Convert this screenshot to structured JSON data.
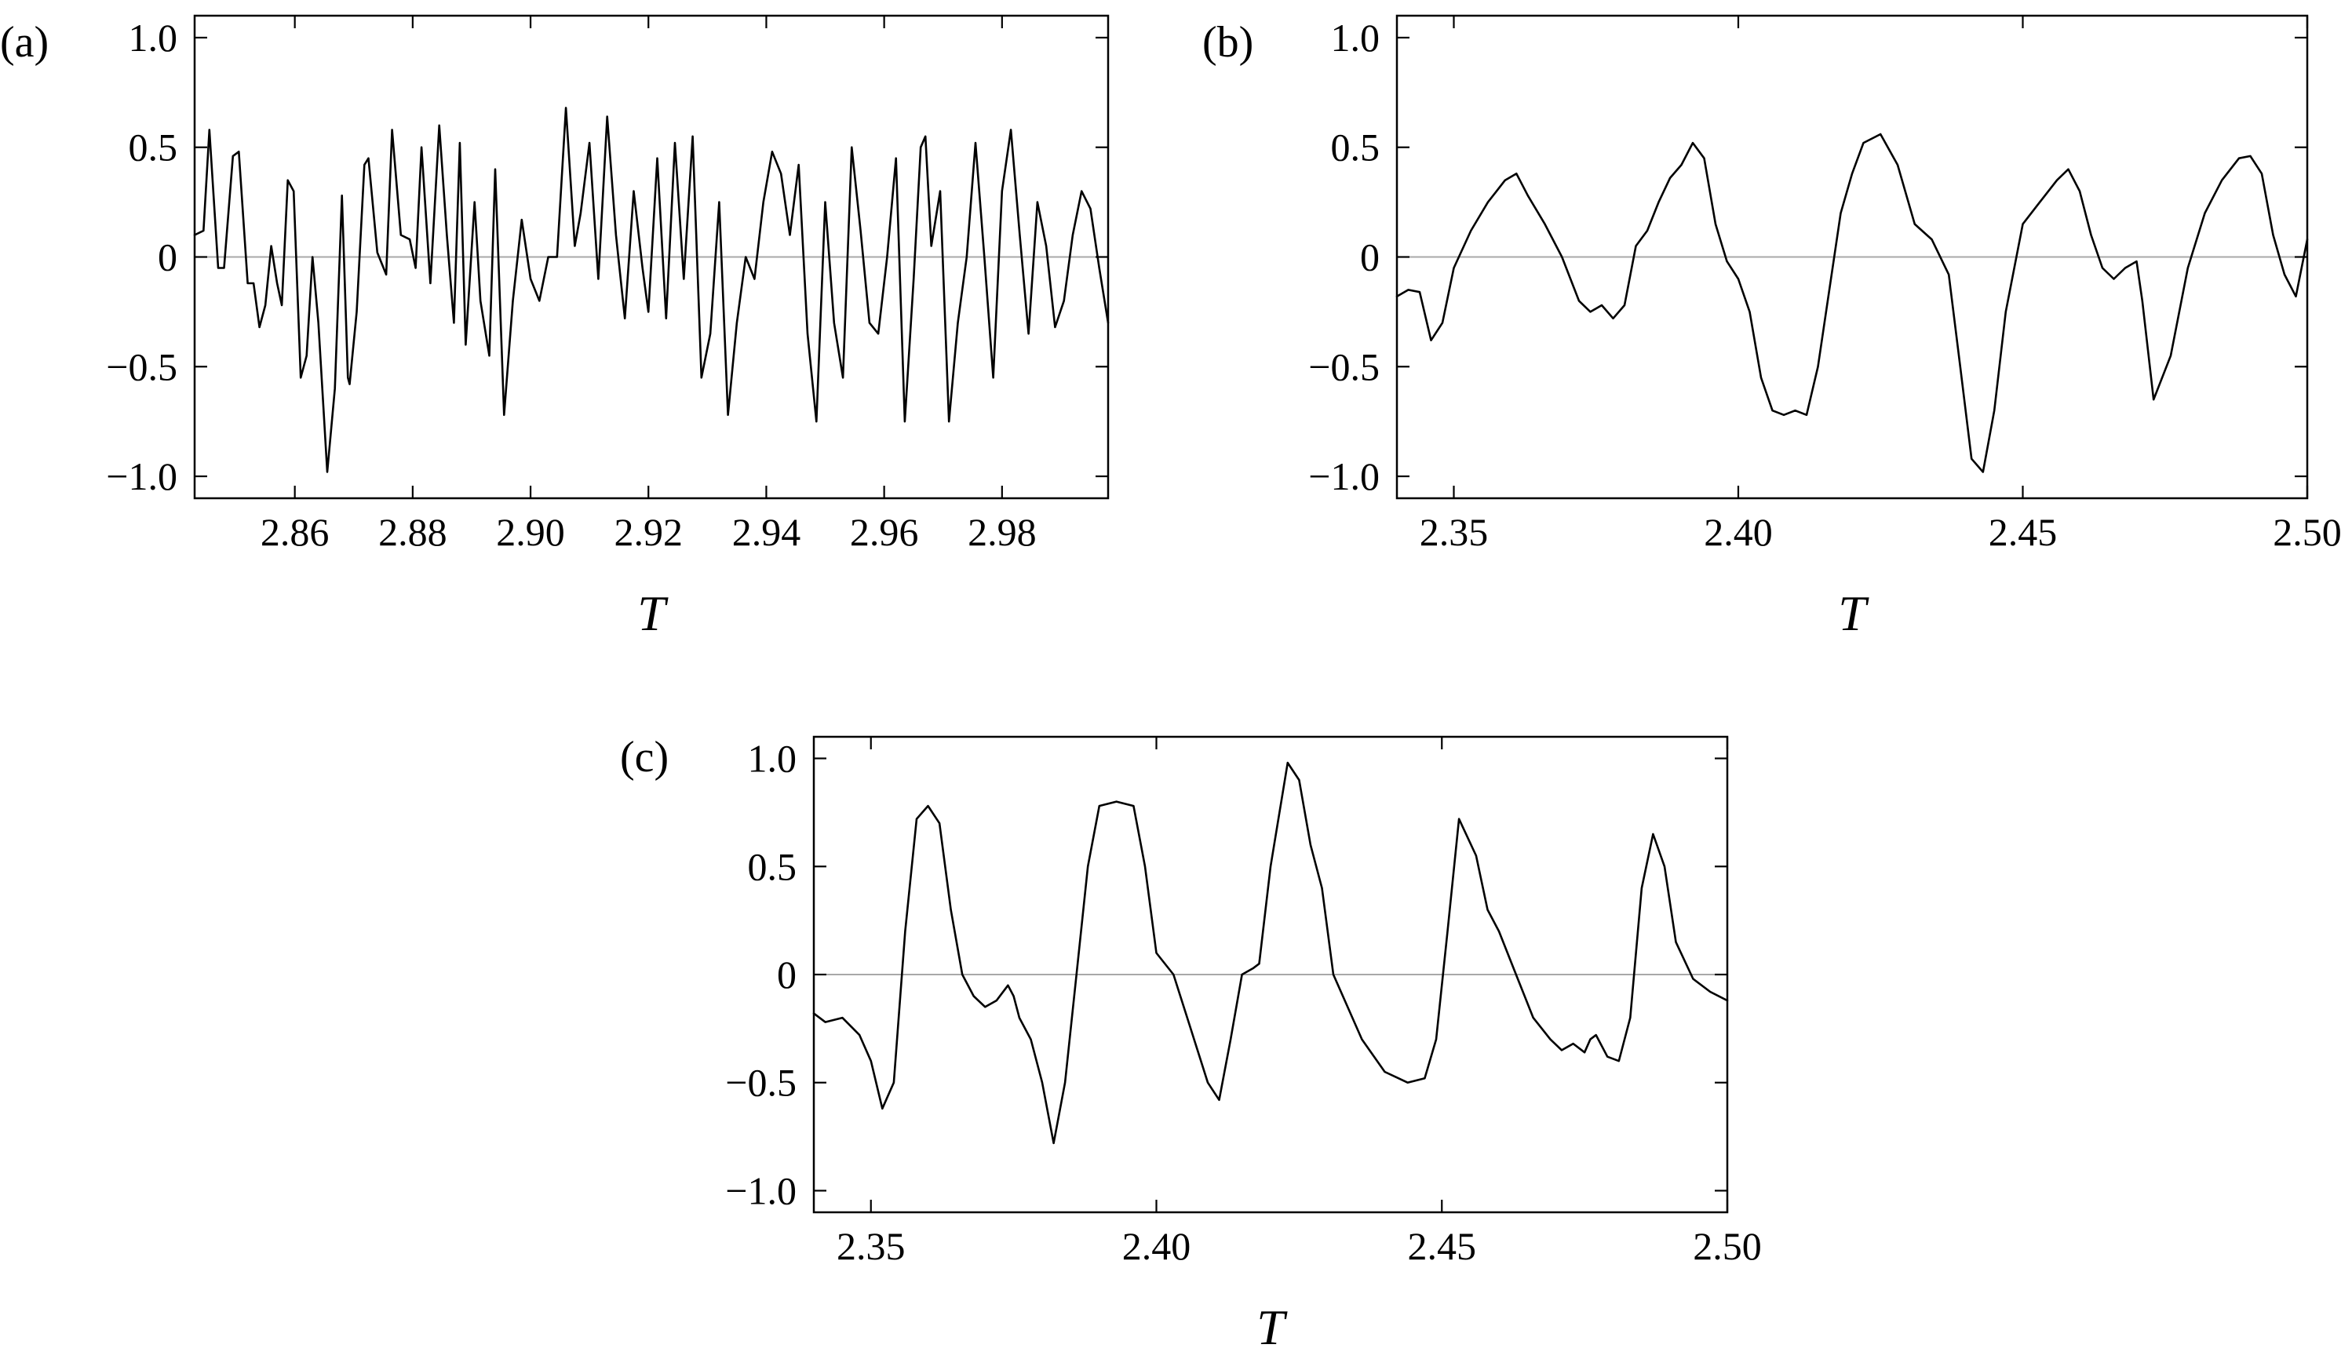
{
  "chart_data": [
    {
      "type": "line",
      "panel_label": "(a)",
      "xlabel": "T",
      "ylabel": "",
      "xlim": [
        2.843,
        2.998
      ],
      "ylim": [
        -1.1,
        1.1
      ],
      "x_ticks": [
        "2.86",
        "2.88",
        "2.90",
        "2.92",
        "2.94",
        "2.96",
        "2.98"
      ],
      "y_ticks": [
        "1.0",
        "0.5",
        "0",
        "−0.5",
        "−1.0"
      ],
      "zero_line": true,
      "series": [
        {
          "x": [
            2.843,
            2.8445,
            2.8455,
            2.847,
            2.848,
            2.8495,
            2.8505,
            2.852,
            2.853,
            2.854,
            2.855,
            2.856,
            2.857,
            2.8578,
            2.8588,
            2.8598,
            2.861,
            2.862,
            2.863,
            2.864,
            2.8655,
            2.8668,
            2.868,
            2.869,
            2.8693,
            2.8705,
            2.8718,
            2.8725,
            2.874,
            2.8755,
            2.8765,
            2.878,
            2.8795,
            2.8805,
            2.8815,
            2.883,
            2.8845,
            2.8858,
            2.887,
            2.888,
            2.889,
            2.8905,
            2.8915,
            2.893,
            2.894,
            2.8955,
            2.897,
            2.8985,
            2.9,
            2.9015,
            2.903,
            2.9045,
            2.906,
            2.9075,
            2.9085,
            2.91,
            2.9115,
            2.913,
            2.9145,
            2.916,
            2.9175,
            2.919,
            2.92,
            2.9215,
            2.923,
            2.9245,
            2.926,
            2.9275,
            2.929,
            2.9305,
            2.932,
            2.9335,
            2.935,
            2.9365,
            2.938,
            2.9395,
            2.941,
            2.9425,
            2.944,
            2.9455,
            2.947,
            2.9485,
            2.95,
            2.9515,
            2.953,
            2.9545,
            2.956,
            2.9575,
            2.959,
            2.9605,
            2.962,
            2.9635,
            2.965,
            2.9662,
            2.967,
            2.968,
            2.9695,
            2.971,
            2.9725,
            2.974,
            2.9755,
            2.977,
            2.9785,
            2.98,
            2.9815,
            2.983,
            2.9845,
            2.986,
            2.9875,
            2.989,
            2.9905,
            2.992,
            2.9935,
            2.995,
            2.9965,
            2.998
          ],
          "y": [
            0.1,
            0.12,
            0.58,
            -0.05,
            -0.05,
            0.46,
            0.48,
            -0.12,
            -0.12,
            -0.32,
            -0.22,
            0.05,
            -0.12,
            -0.22,
            0.35,
            0.3,
            -0.55,
            -0.45,
            0.0,
            -0.3,
            -0.98,
            -0.6,
            0.28,
            -0.55,
            -0.58,
            -0.25,
            0.42,
            0.45,
            0.02,
            -0.08,
            0.58,
            0.1,
            0.08,
            -0.05,
            0.5,
            -0.12,
            0.6,
            0.1,
            -0.3,
            0.52,
            -0.4,
            0.25,
            -0.2,
            -0.45,
            0.4,
            -0.72,
            -0.2,
            0.17,
            -0.1,
            -0.2,
            0.0,
            0.0,
            0.68,
            0.05,
            0.2,
            0.52,
            -0.1,
            0.64,
            0.1,
            -0.28,
            0.3,
            -0.05,
            -0.25,
            0.45,
            -0.28,
            0.52,
            -0.1,
            0.55,
            -0.55,
            -0.35,
            0.25,
            -0.72,
            -0.3,
            0.0,
            -0.1,
            0.25,
            0.48,
            0.38,
            0.1,
            0.42,
            -0.35,
            -0.75,
            0.25,
            -0.3,
            -0.55,
            0.5,
            0.12,
            -0.3,
            -0.35,
            0.0,
            0.45,
            -0.75,
            -0.1,
            0.5,
            0.55,
            0.05,
            0.3,
            -0.75,
            -0.3,
            0.0,
            0.52,
            0.0,
            -0.55,
            0.3,
            0.58,
            0.1,
            -0.35,
            0.25,
            0.05,
            -0.32,
            -0.2,
            0.1,
            0.3,
            0.22,
            -0.05,
            -0.3
          ]
        }
      ]
    },
    {
      "type": "line",
      "panel_label": "(b)",
      "xlabel": "T",
      "ylabel": "",
      "xlim": [
        2.34,
        2.5
      ],
      "ylim": [
        -1.1,
        1.1
      ],
      "x_ticks": [
        "2.35",
        "2.40",
        "2.45",
        "2.50"
      ],
      "y_ticks": [
        "1.0",
        "0.5",
        "0",
        "−0.5",
        "−1.0"
      ],
      "zero_line": true,
      "series": [
        {
          "x": [
            2.34,
            2.342,
            2.344,
            2.346,
            2.348,
            2.35,
            2.353,
            2.356,
            2.359,
            2.361,
            2.363,
            2.366,
            2.369,
            2.372,
            2.374,
            2.376,
            2.378,
            2.38,
            2.382,
            2.384,
            2.386,
            2.388,
            2.39,
            2.392,
            2.394,
            2.396,
            2.398,
            2.4,
            2.402,
            2.404,
            2.406,
            2.408,
            2.41,
            2.412,
            2.414,
            2.416,
            2.418,
            2.42,
            2.422,
            2.425,
            2.428,
            2.431,
            2.434,
            2.437,
            2.439,
            2.441,
            2.443,
            2.445,
            2.447,
            2.45,
            2.453,
            2.456,
            2.458,
            2.46,
            2.462,
            2.464,
            2.466,
            2.468,
            2.47,
            2.471,
            2.473,
            2.476,
            2.479,
            2.482,
            2.485,
            2.488,
            2.49,
            2.492,
            2.494,
            2.496,
            2.498,
            2.5
          ],
          "y": [
            -0.18,
            -0.15,
            -0.16,
            -0.38,
            -0.3,
            -0.05,
            0.12,
            0.25,
            0.35,
            0.38,
            0.28,
            0.15,
            0.0,
            -0.2,
            -0.25,
            -0.22,
            -0.28,
            -0.22,
            0.05,
            0.12,
            0.25,
            0.36,
            0.42,
            0.52,
            0.45,
            0.15,
            -0.02,
            -0.1,
            -0.25,
            -0.55,
            -0.7,
            -0.72,
            -0.7,
            -0.72,
            -0.5,
            -0.15,
            0.2,
            0.38,
            0.52,
            0.56,
            0.42,
            0.15,
            0.08,
            -0.08,
            -0.5,
            -0.92,
            -0.98,
            -0.7,
            -0.25,
            0.15,
            0.25,
            0.35,
            0.4,
            0.3,
            0.1,
            -0.05,
            -0.1,
            -0.05,
            -0.02,
            -0.2,
            -0.65,
            -0.45,
            -0.05,
            0.2,
            0.35,
            0.45,
            0.46,
            0.38,
            0.1,
            -0.08,
            -0.18,
            0.08
          ]
        }
      ]
    },
    {
      "type": "line",
      "panel_label": "(c)",
      "xlabel": "T",
      "ylabel": "",
      "xlim": [
        2.34,
        2.5
      ],
      "ylim": [
        -1.1,
        1.1
      ],
      "x_ticks": [
        "2.35",
        "2.40",
        "2.45",
        "2.50"
      ],
      "y_ticks": [
        "1.0",
        "0.5",
        "0",
        "−0.5",
        "−1.0"
      ],
      "zero_line": true,
      "series": [
        {
          "x": [
            2.34,
            2.342,
            2.345,
            2.348,
            2.35,
            2.352,
            2.354,
            2.356,
            2.358,
            2.36,
            2.362,
            2.364,
            2.366,
            2.368,
            2.37,
            2.372,
            2.374,
            2.375,
            2.376,
            2.378,
            2.38,
            2.382,
            2.384,
            2.386,
            2.388,
            2.39,
            2.393,
            2.396,
            2.398,
            2.4,
            2.403,
            2.406,
            2.409,
            2.411,
            2.413,
            2.415,
            2.417,
            2.418,
            2.42,
            2.423,
            2.425,
            2.427,
            2.429,
            2.431,
            2.433,
            2.436,
            2.44,
            2.444,
            2.447,
            2.449,
            2.451,
            2.453,
            2.456,
            2.458,
            2.46,
            2.463,
            2.466,
            2.469,
            2.471,
            2.473,
            2.475,
            2.476,
            2.477,
            2.479,
            2.481,
            2.483,
            2.485,
            2.487,
            2.489,
            2.491,
            2.494,
            2.497,
            2.5
          ],
          "y": [
            -0.18,
            -0.22,
            -0.2,
            -0.28,
            -0.4,
            -0.62,
            -0.5,
            0.2,
            0.72,
            0.78,
            0.7,
            0.3,
            0.0,
            -0.1,
            -0.15,
            -0.12,
            -0.05,
            -0.1,
            -0.2,
            -0.3,
            -0.5,
            -0.78,
            -0.5,
            0.0,
            0.5,
            0.78,
            0.8,
            0.78,
            0.5,
            0.1,
            0.0,
            -0.25,
            -0.5,
            -0.58,
            -0.3,
            0.0,
            0.03,
            0.05,
            0.5,
            0.98,
            0.9,
            0.6,
            0.4,
            0.0,
            -0.12,
            -0.3,
            -0.45,
            -0.5,
            -0.48,
            -0.3,
            0.2,
            0.72,
            0.55,
            0.3,
            0.2,
            0.0,
            -0.2,
            -0.3,
            -0.35,
            -0.32,
            -0.36,
            -0.3,
            -0.28,
            -0.38,
            -0.4,
            -0.2,
            0.4,
            0.65,
            0.5,
            0.15,
            -0.02,
            -0.08,
            -0.12
          ]
        }
      ]
    }
  ]
}
